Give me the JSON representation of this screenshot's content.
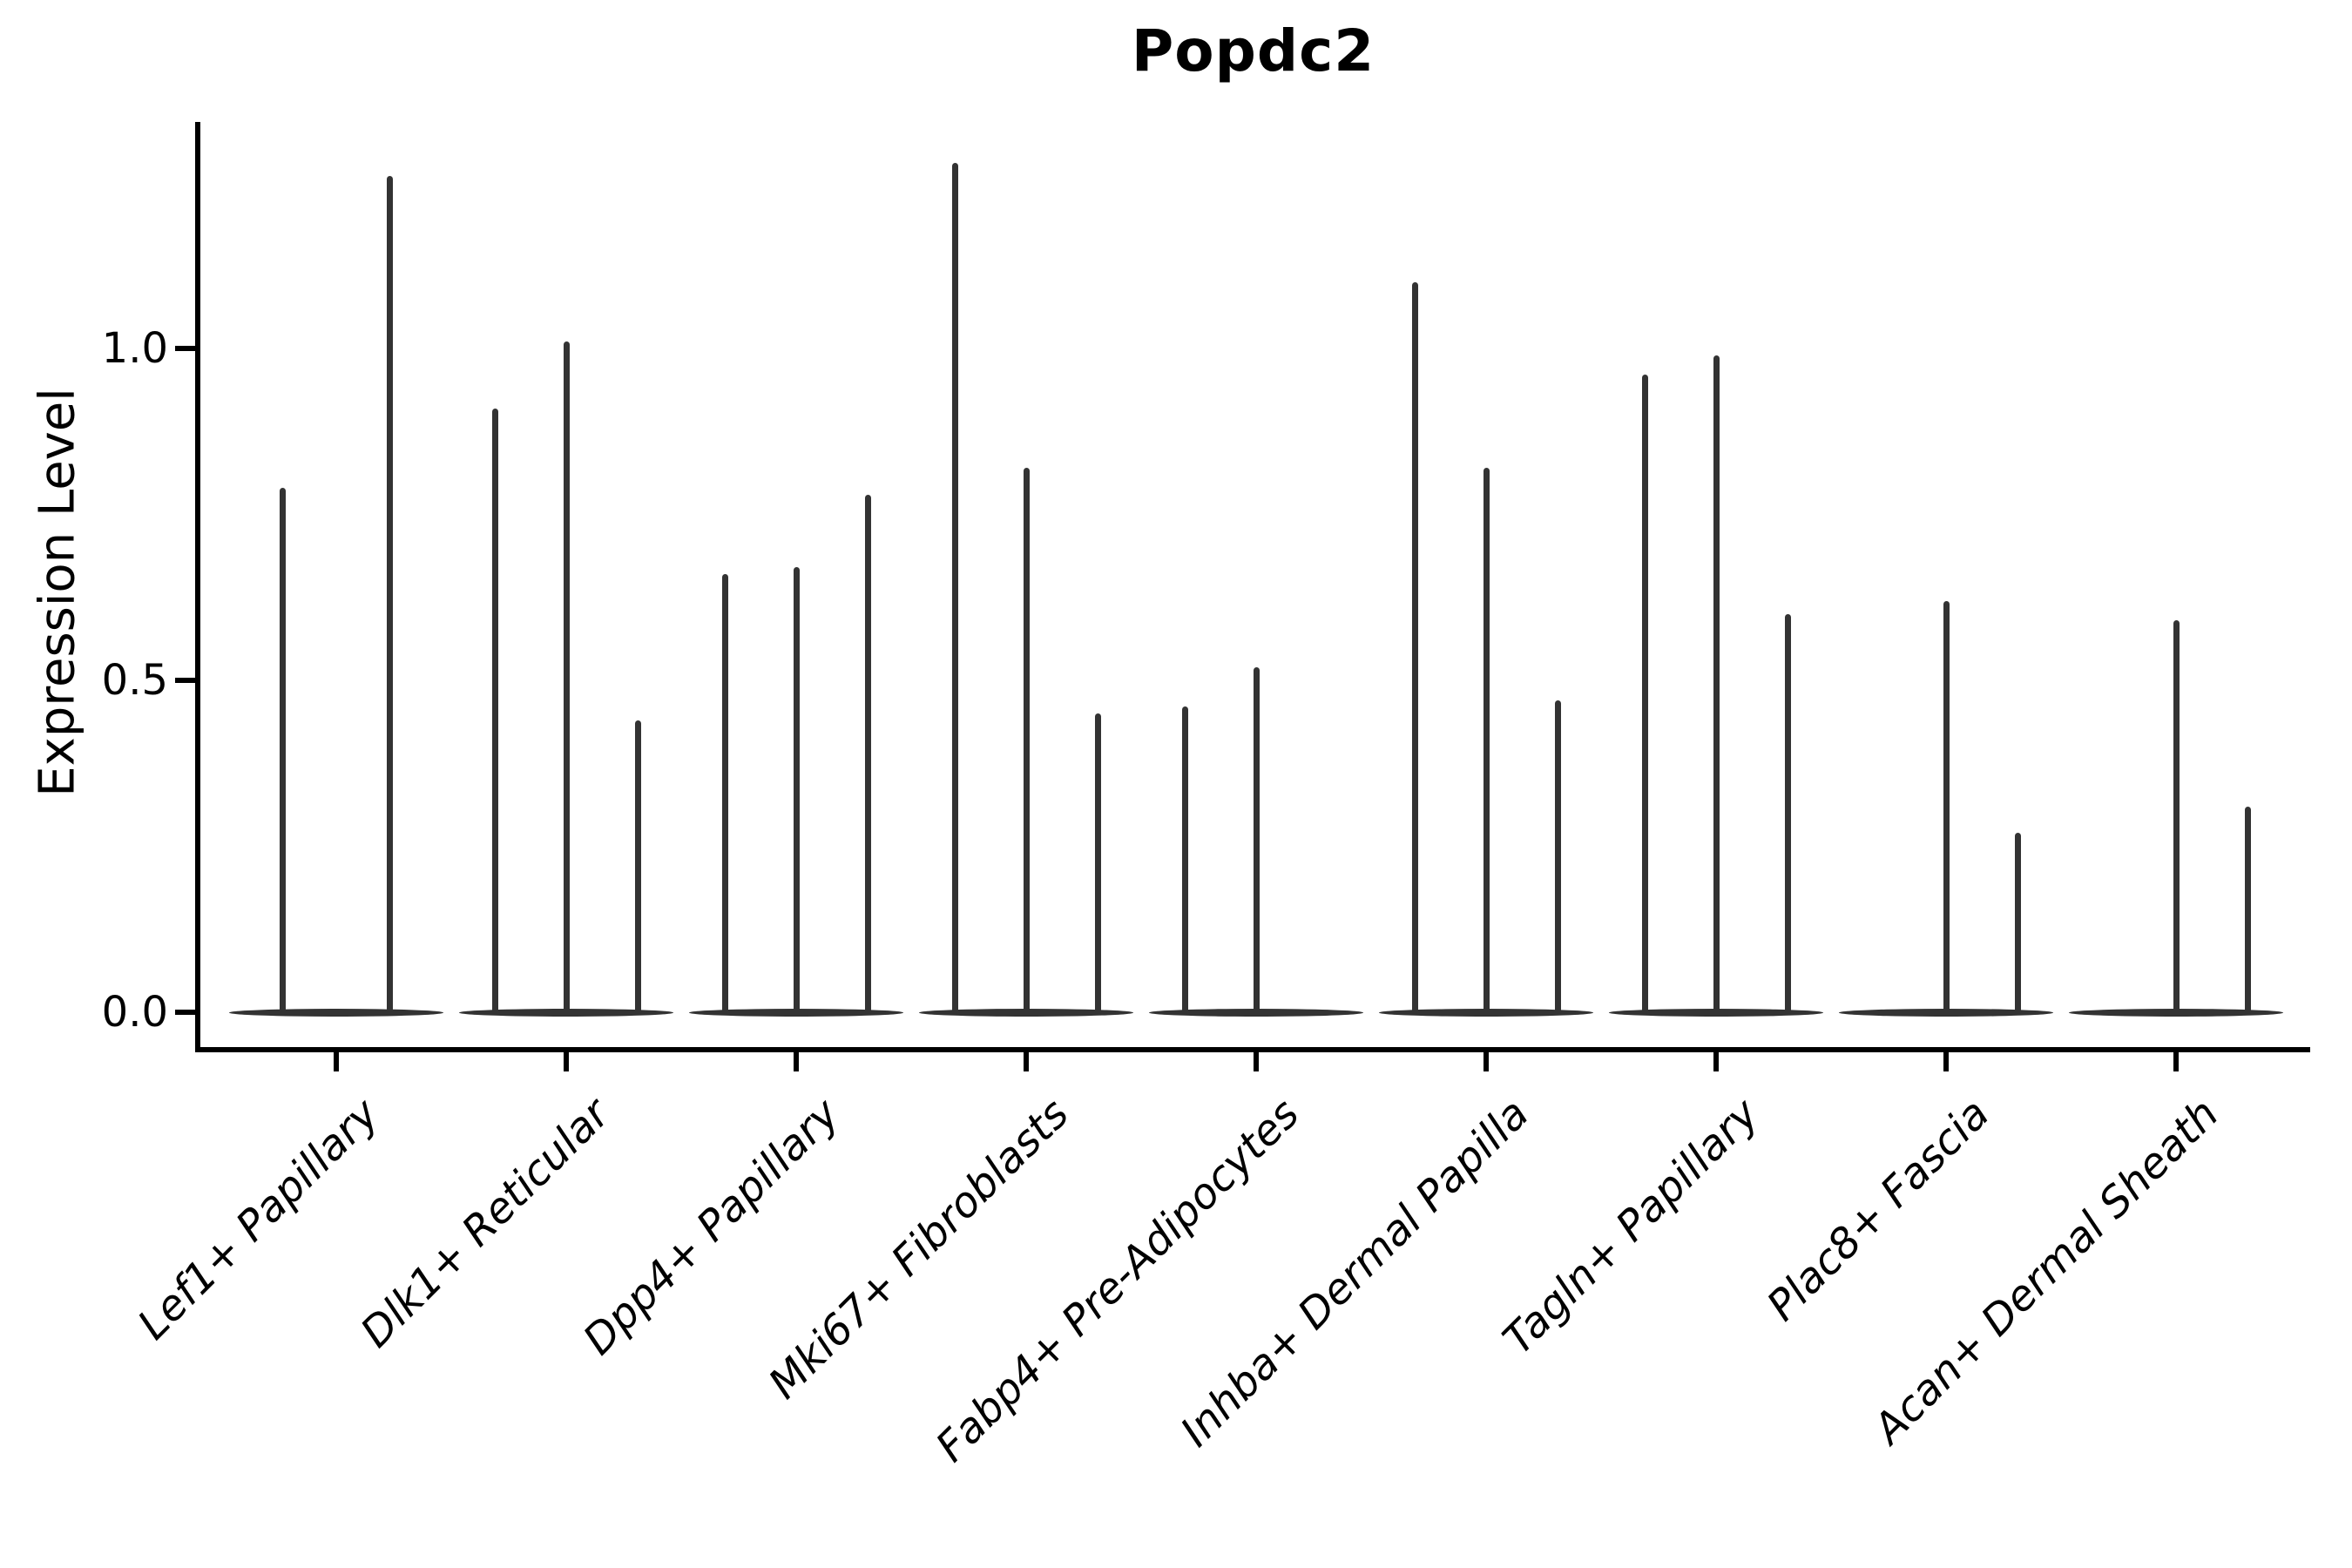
{
  "figure": {
    "title": "Popdc2"
  },
  "chart_data": {
    "type": "violin",
    "title": "Popdc2",
    "xlabel": "",
    "ylabel": "Expression Level",
    "grid": false,
    "legend": "none",
    "ylim": [
      -0.06,
      1.34
    ],
    "yticks": [
      {
        "label": "0.0",
        "value": 0.0
      },
      {
        "label": "0.5",
        "value": 0.5
      },
      {
        "label": "1.0",
        "value": 1.0
      }
    ],
    "categories": [
      "Lef1+ Papillary",
      "Dlk1+ Reticular",
      "Dpp4+ Papillary",
      "Mki67+ Fibroblasts",
      "Fabp4+ Pre-Adipocytes",
      "Inhba+ Dermal Papilla",
      "Tagln+ Papillary",
      "Plac8+ Fascia",
      "Acan+ Dermal Sheath"
    ],
    "groups": [
      {
        "label": "Lef1+ Papillary",
        "violin_max_values": [
          0.79,
          1.26
        ]
      },
      {
        "label": "Dlk1+ Reticular",
        "violin_max_values": [
          0.91,
          1.01,
          0.44
        ]
      },
      {
        "label": "Dpp4+ Papillary",
        "violin_max_values": [
          0.66,
          0.67,
          0.78
        ]
      },
      {
        "label": "Mki67+ Fibroblasts",
        "violin_max_values": [
          1.28,
          0.82,
          0.45
        ]
      },
      {
        "label": "Fabp4+ Pre-Adipocytes",
        "violin_max_values": [
          0.46,
          0.52,
          0.0
        ]
      },
      {
        "label": "Inhba+ Dermal Papilla",
        "violin_max_values": [
          1.1,
          0.82,
          0.47
        ]
      },
      {
        "label": "Tagln+ Papillary",
        "violin_max_values": [
          0.96,
          0.99,
          0.6
        ]
      },
      {
        "label": "Plac8+ Fascia",
        "violin_max_values": [
          0.0,
          0.62,
          0.27
        ]
      },
      {
        "label": "Acan+ Dermal Sheath",
        "violin_max_values": [
          0.0,
          0.59,
          0.31
        ]
      }
    ],
    "colors": {
      "violin": "#333333",
      "axis": "#000000",
      "text": "#000000",
      "background": "#ffffff"
    }
  }
}
